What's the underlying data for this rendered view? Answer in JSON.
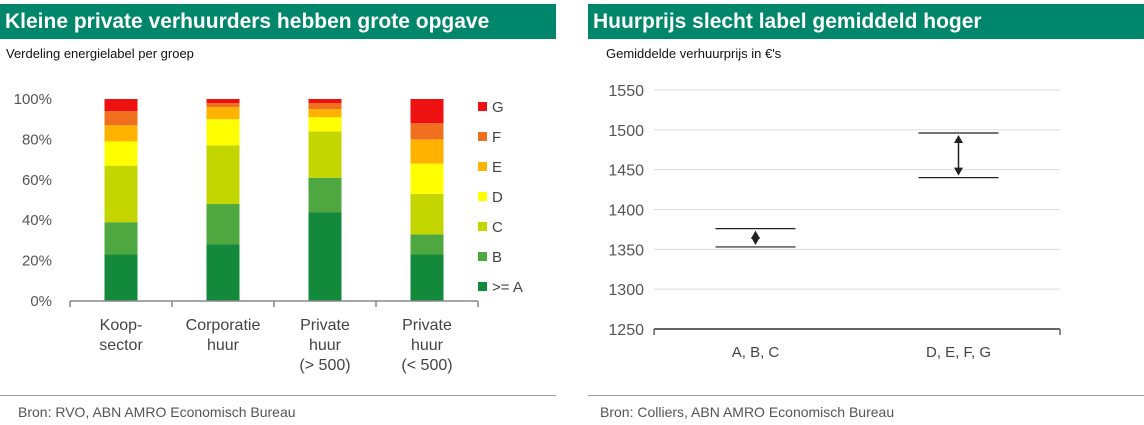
{
  "left": {
    "title": "Kleine private verhuurders hebben grote opgave",
    "subtitle": "Verdeling energielabel per groep",
    "source": "Bron: RVO, ABN AMRO Economisch Bureau"
  },
  "right": {
    "title": "Huurprijs slecht label gemiddeld hoger",
    "subtitle": "Gemiddelde verhuurprijs in €'s",
    "source": "Bron: Colliers, ABN AMRO Economisch Bureau"
  },
  "chart_data": [
    {
      "type": "bar",
      "stacked": true,
      "title": "Kleine private verhuurders hebben grote opgave",
      "subtitle": "Verdeling energielabel per groep",
      "categories": [
        [
          "Koop-",
          "sector"
        ],
        [
          "Corporatie",
          "huur"
        ],
        [
          "Private",
          "huur",
          "(> 500)"
        ],
        [
          "Private",
          "huur",
          "(< 500)"
        ]
      ],
      "ylim": [
        0,
        100
      ],
      "yticks": [
        "0%",
        "20%",
        "40%",
        "60%",
        "80%",
        "100%"
      ],
      "legend_position": "right",
      "series": [
        {
          "name": ">= A",
          "color": "#13893c",
          "values": [
            23,
            28,
            44,
            23
          ]
        },
        {
          "name": "B",
          "color": "#4ea83f",
          "values": [
            16,
            20,
            17,
            10
          ]
        },
        {
          "name": "C",
          "color": "#c4d600",
          "values": [
            28,
            29,
            23,
            20
          ]
        },
        {
          "name": "D",
          "color": "#ffff00",
          "values": [
            12,
            13,
            7,
            15
          ]
        },
        {
          "name": "E",
          "color": "#ffb300",
          "values": [
            8,
            6,
            4,
            12
          ]
        },
        {
          "name": "F",
          "color": "#f07020",
          "values": [
            7,
            2,
            3,
            8
          ]
        },
        {
          "name": "G",
          "color": "#ee1111",
          "values": [
            6,
            2,
            2,
            12
          ]
        }
      ]
    },
    {
      "type": "range",
      "title": "Huurprijs slecht label gemiddeld hoger",
      "subtitle": "Gemiddelde verhuurprijs in €'s",
      "categories": [
        "A, B, C",
        "D, E, F, G"
      ],
      "ylim": [
        1250,
        1550
      ],
      "yticks": [
        1250,
        1300,
        1350,
        1400,
        1450,
        1500,
        1550
      ],
      "grid": true,
      "ranges": [
        {
          "low": 1353,
          "high": 1376
        },
        {
          "low": 1440,
          "high": 1496
        }
      ]
    }
  ]
}
